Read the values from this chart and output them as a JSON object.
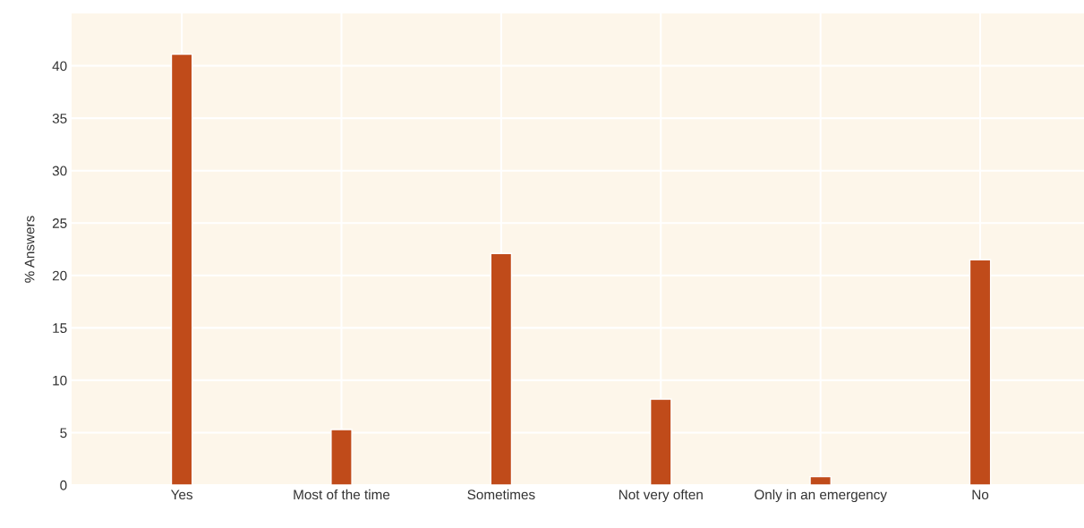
{
  "chart_data": {
    "type": "bar",
    "ylabel": "% Answers",
    "categories": [
      "Yes",
      "Most of the time",
      "Sometimes",
      "Not very often",
      "Only in an emergency",
      "No"
    ],
    "values": [
      41.1,
      5.3,
      22.1,
      8.2,
      0.8,
      21.5
    ],
    "color": "#c04b1a",
    "ylim": [
      0,
      45
    ],
    "yticks": [
      0,
      5,
      10,
      15,
      20,
      25,
      30,
      35,
      40
    ],
    "grid": true
  }
}
